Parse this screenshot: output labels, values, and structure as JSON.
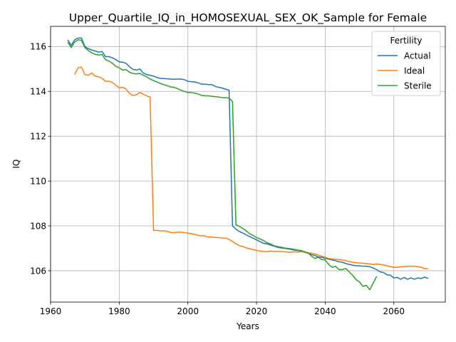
{
  "chart_data": {
    "type": "line",
    "title": "Upper_Quartile_IQ_in_HOMOSEXUAL_SEX_OK_Sample for Female",
    "xlabel": "Years",
    "ylabel": "IQ",
    "xlim": [
      1960,
      2075
    ],
    "ylim": [
      104.6,
      116.9
    ],
    "xticks": [
      1960,
      1980,
      2000,
      2020,
      2040,
      2060
    ],
    "yticks": [
      106,
      108,
      110,
      112,
      114,
      116
    ],
    "grid": true,
    "legend": {
      "title": "Fertility",
      "placement": "top-right"
    },
    "series": [
      {
        "name": "Actual",
        "color": "#1f77b4",
        "points": [
          [
            1965,
            116.3
          ],
          [
            1966,
            116.05
          ],
          [
            1967,
            116.3
          ],
          [
            1968,
            116.38
          ],
          [
            1969,
            116.38
          ],
          [
            1970,
            116.0
          ],
          [
            1971,
            115.9
          ],
          [
            1972,
            115.85
          ],
          [
            1973,
            115.8
          ],
          [
            1974,
            115.75
          ],
          [
            1975,
            115.78
          ],
          [
            1976,
            115.55
          ],
          [
            1977,
            115.55
          ],
          [
            1978,
            115.5
          ],
          [
            1979,
            115.42
          ],
          [
            1980,
            115.32
          ],
          [
            1981,
            115.3
          ],
          [
            1982,
            115.25
          ],
          [
            1983,
            115.1
          ],
          [
            1984,
            114.98
          ],
          [
            1985,
            114.95
          ],
          [
            1986,
            115.0
          ],
          [
            1987,
            114.82
          ],
          [
            1988,
            114.75
          ],
          [
            1989,
            114.72
          ],
          [
            1990,
            114.68
          ],
          [
            1991,
            114.62
          ],
          [
            1992,
            114.58
          ],
          [
            1993,
            114.57
          ],
          [
            1994,
            114.56
          ],
          [
            1995,
            114.55
          ],
          [
            1996,
            114.54
          ],
          [
            1997,
            114.55
          ],
          [
            1998,
            114.55
          ],
          [
            1999,
            114.52
          ],
          [
            2000,
            114.45
          ],
          [
            2001,
            114.43
          ],
          [
            2002,
            114.42
          ],
          [
            2003,
            114.38
          ],
          [
            2004,
            114.32
          ],
          [
            2005,
            114.32
          ],
          [
            2006,
            114.3
          ],
          [
            2007,
            114.3
          ],
          [
            2008,
            114.22
          ],
          [
            2009,
            114.18
          ],
          [
            2010,
            114.15
          ],
          [
            2011,
            114.1
          ],
          [
            2012,
            114.05
          ],
          [
            2013,
            108.0
          ],
          [
            2014,
            107.85
          ],
          [
            2015,
            107.75
          ],
          [
            2016,
            107.68
          ],
          [
            2017,
            107.6
          ],
          [
            2018,
            107.52
          ],
          [
            2019,
            107.45
          ],
          [
            2020,
            107.38
          ],
          [
            2021,
            107.3
          ],
          [
            2022,
            107.22
          ],
          [
            2023,
            107.2
          ],
          [
            2024,
            107.15
          ],
          [
            2025,
            107.1
          ],
          [
            2026,
            107.05
          ],
          [
            2027,
            107.02
          ],
          [
            2028,
            107.0
          ],
          [
            2029,
            106.98
          ],
          [
            2030,
            106.95
          ],
          [
            2031,
            106.92
          ],
          [
            2032,
            106.9
          ],
          [
            2033,
            106.88
          ],
          [
            2034,
            106.82
          ],
          [
            2035,
            106.78
          ],
          [
            2036,
            106.72
          ],
          [
            2037,
            106.68
          ],
          [
            2038,
            106.62
          ],
          [
            2039,
            106.6
          ],
          [
            2040,
            106.55
          ],
          [
            2041,
            106.52
          ],
          [
            2042,
            106.48
          ],
          [
            2043,
            106.45
          ],
          [
            2044,
            106.4
          ],
          [
            2045,
            106.38
          ],
          [
            2046,
            106.32
          ],
          [
            2047,
            106.28
          ],
          [
            2048,
            106.25
          ],
          [
            2049,
            106.22
          ],
          [
            2050,
            106.22
          ],
          [
            2051,
            106.2
          ],
          [
            2052,
            106.2
          ],
          [
            2053,
            106.18
          ],
          [
            2054,
            106.12
          ],
          [
            2055,
            106.05
          ],
          [
            2056,
            105.95
          ],
          [
            2057,
            105.92
          ],
          [
            2058,
            105.82
          ],
          [
            2059,
            105.8
          ],
          [
            2060,
            105.68
          ],
          [
            2061,
            105.7
          ],
          [
            2062,
            105.62
          ],
          [
            2063,
            105.7
          ],
          [
            2064,
            105.62
          ],
          [
            2065,
            105.68
          ],
          [
            2066,
            105.62
          ],
          [
            2067,
            105.68
          ],
          [
            2068,
            105.65
          ],
          [
            2069,
            105.72
          ],
          [
            2070,
            105.65
          ]
        ]
      },
      {
        "name": "Ideal",
        "color": "#ff7f0e",
        "points": [
          [
            1967,
            114.75
          ],
          [
            1968,
            115.05
          ],
          [
            1969,
            115.08
          ],
          [
            1970,
            114.75
          ],
          [
            1971,
            114.72
          ],
          [
            1972,
            114.82
          ],
          [
            1973,
            114.68
          ],
          [
            1974,
            114.65
          ],
          [
            1975,
            114.58
          ],
          [
            1976,
            114.45
          ],
          [
            1977,
            114.45
          ],
          [
            1978,
            114.4
          ],
          [
            1979,
            114.28
          ],
          [
            1980,
            114.15
          ],
          [
            1981,
            114.18
          ],
          [
            1982,
            114.1
          ],
          [
            1983,
            113.9
          ],
          [
            1984,
            113.82
          ],
          [
            1985,
            113.85
          ],
          [
            1986,
            113.95
          ],
          [
            1987,
            113.88
          ],
          [
            1988,
            113.8
          ],
          [
            1989,
            113.75
          ],
          [
            1990,
            107.8
          ],
          [
            1991,
            107.8
          ],
          [
            1992,
            107.78
          ],
          [
            1993,
            107.78
          ],
          [
            1994,
            107.75
          ],
          [
            1995,
            107.7
          ],
          [
            1996,
            107.7
          ],
          [
            1997,
            107.72
          ],
          [
            1998,
            107.72
          ],
          [
            1999,
            107.7
          ],
          [
            2000,
            107.68
          ],
          [
            2001,
            107.65
          ],
          [
            2002,
            107.62
          ],
          [
            2003,
            107.58
          ],
          [
            2004,
            107.55
          ],
          [
            2005,
            107.55
          ],
          [
            2006,
            107.5
          ],
          [
            2007,
            107.5
          ],
          [
            2008,
            107.48
          ],
          [
            2009,
            107.48
          ],
          [
            2010,
            107.46
          ],
          [
            2011,
            107.45
          ],
          [
            2012,
            107.4
          ],
          [
            2013,
            107.3
          ],
          [
            2014,
            107.2
          ],
          [
            2015,
            107.12
          ],
          [
            2016,
            107.08
          ],
          [
            2017,
            107.02
          ],
          [
            2018,
            106.98
          ],
          [
            2019,
            106.94
          ],
          [
            2020,
            106.9
          ],
          [
            2021,
            106.88
          ],
          [
            2022,
            106.86
          ],
          [
            2023,
            106.85
          ],
          [
            2024,
            106.88
          ],
          [
            2025,
            106.86
          ],
          [
            2026,
            106.86
          ],
          [
            2027,
            106.86
          ],
          [
            2028,
            106.85
          ],
          [
            2029,
            106.83
          ],
          [
            2030,
            106.82
          ],
          [
            2031,
            106.85
          ],
          [
            2032,
            106.83
          ],
          [
            2033,
            106.85
          ],
          [
            2034,
            106.82
          ],
          [
            2035,
            106.8
          ],
          [
            2036,
            106.78
          ],
          [
            2037,
            106.75
          ],
          [
            2038,
            106.7
          ],
          [
            2039,
            106.65
          ],
          [
            2040,
            106.6
          ],
          [
            2041,
            106.55
          ],
          [
            2042,
            106.52
          ],
          [
            2043,
            106.52
          ],
          [
            2044,
            106.5
          ],
          [
            2045,
            106.48
          ],
          [
            2046,
            106.45
          ],
          [
            2047,
            106.4
          ],
          [
            2048,
            106.38
          ],
          [
            2049,
            106.36
          ],
          [
            2050,
            106.35
          ],
          [
            2051,
            106.33
          ],
          [
            2052,
            106.32
          ],
          [
            2053,
            106.3
          ],
          [
            2054,
            106.28
          ],
          [
            2055,
            106.3
          ],
          [
            2056,
            106.28
          ],
          [
            2057,
            106.26
          ],
          [
            2058,
            106.22
          ],
          [
            2059,
            106.18
          ],
          [
            2060,
            106.15
          ],
          [
            2061,
            106.15
          ],
          [
            2062,
            106.18
          ],
          [
            2063,
            106.18
          ],
          [
            2064,
            106.2
          ],
          [
            2065,
            106.2
          ],
          [
            2066,
            106.2
          ],
          [
            2067,
            106.18
          ],
          [
            2068,
            106.15
          ],
          [
            2069,
            106.1
          ],
          [
            2070,
            106.08
          ]
        ]
      },
      {
        "name": "Sterile",
        "color": "#2ca02c",
        "points": [
          [
            1965,
            116.2
          ],
          [
            1966,
            115.95
          ],
          [
            1967,
            116.2
          ],
          [
            1968,
            116.3
          ],
          [
            1969,
            116.28
          ],
          [
            1970,
            115.95
          ],
          [
            1971,
            115.82
          ],
          [
            1972,
            115.72
          ],
          [
            1973,
            115.65
          ],
          [
            1974,
            115.62
          ],
          [
            1975,
            115.65
          ],
          [
            1976,
            115.42
          ],
          [
            1977,
            115.35
          ],
          [
            1978,
            115.25
          ],
          [
            1979,
            115.12
          ],
          [
            1980,
            115.05
          ],
          [
            1981,
            114.95
          ],
          [
            1982,
            114.97
          ],
          [
            1983,
            114.85
          ],
          [
            1984,
            114.8
          ],
          [
            1985,
            114.78
          ],
          [
            1986,
            114.8
          ],
          [
            1987,
            114.72
          ],
          [
            1988,
            114.65
          ],
          [
            1989,
            114.55
          ],
          [
            1990,
            114.48
          ],
          [
            1991,
            114.42
          ],
          [
            1992,
            114.35
          ],
          [
            1993,
            114.3
          ],
          [
            1994,
            114.25
          ],
          [
            1995,
            114.2
          ],
          [
            1996,
            114.18
          ],
          [
            1997,
            114.12
          ],
          [
            1998,
            114.05
          ],
          [
            1999,
            114.0
          ],
          [
            2000,
            113.95
          ],
          [
            2001,
            113.95
          ],
          [
            2002,
            113.92
          ],
          [
            2003,
            113.88
          ],
          [
            2004,
            113.82
          ],
          [
            2005,
            113.8
          ],
          [
            2006,
            113.8
          ],
          [
            2007,
            113.78
          ],
          [
            2008,
            113.76
          ],
          [
            2009,
            113.75
          ],
          [
            2010,
            113.72
          ],
          [
            2011,
            113.72
          ],
          [
            2012,
            113.7
          ],
          [
            2013,
            113.55
          ],
          [
            2014,
            108.05
          ],
          [
            2015,
            107.98
          ],
          [
            2016,
            107.88
          ],
          [
            2017,
            107.78
          ],
          [
            2018,
            107.65
          ],
          [
            2019,
            107.58
          ],
          [
            2020,
            107.48
          ],
          [
            2021,
            107.42
          ],
          [
            2022,
            107.35
          ],
          [
            2023,
            107.25
          ],
          [
            2024,
            107.2
          ],
          [
            2025,
            107.12
          ],
          [
            2026,
            107.08
          ],
          [
            2027,
            107.05
          ],
          [
            2028,
            107.02
          ],
          [
            2029,
            107.0
          ],
          [
            2030,
            106.98
          ],
          [
            2031,
            106.95
          ],
          [
            2032,
            106.92
          ],
          [
            2033,
            106.9
          ],
          [
            2034,
            106.85
          ],
          [
            2035,
            106.8
          ],
          [
            2036,
            106.65
          ],
          [
            2037,
            106.55
          ],
          [
            2038,
            106.6
          ],
          [
            2039,
            106.5
          ],
          [
            2040,
            106.48
          ],
          [
            2041,
            106.28
          ],
          [
            2042,
            106.15
          ],
          [
            2043,
            106.2
          ],
          [
            2044,
            106.05
          ],
          [
            2045,
            106.05
          ],
          [
            2046,
            106.1
          ],
          [
            2047,
            105.95
          ],
          [
            2048,
            105.8
          ],
          [
            2049,
            105.6
          ],
          [
            2050,
            105.5
          ],
          [
            2051,
            105.3
          ],
          [
            2052,
            105.35
          ],
          [
            2053,
            105.15
          ],
          [
            2054,
            105.45
          ],
          [
            2055,
            105.75
          ]
        ]
      }
    ]
  }
}
